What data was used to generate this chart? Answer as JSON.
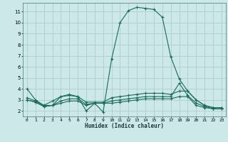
{
  "xlabel": "Humidex (Indice chaleur)",
  "bg_color": "#cce8e8",
  "grid_color": "#b0cccc",
  "line_color": "#1a6b5a",
  "xlim": [
    -0.5,
    23.5
  ],
  "ylim": [
    1.5,
    11.8
  ],
  "yticks": [
    2,
    3,
    4,
    5,
    6,
    7,
    8,
    9,
    10,
    11
  ],
  "xticks": [
    0,
    1,
    2,
    3,
    4,
    5,
    6,
    7,
    8,
    9,
    10,
    11,
    12,
    13,
    14,
    15,
    16,
    17,
    18,
    19,
    20,
    21,
    22,
    23
  ],
  "line1_x": [
    0,
    1,
    2,
    3,
    4,
    5,
    6,
    7,
    8,
    9,
    10,
    11,
    12,
    13,
    14,
    15,
    16,
    17,
    18,
    19,
    20,
    21,
    22,
    23
  ],
  "line1_y": [
    4.0,
    3.0,
    2.5,
    2.5,
    3.3,
    3.5,
    3.3,
    2.0,
    2.7,
    1.9,
    6.7,
    10.0,
    11.1,
    11.4,
    11.3,
    11.2,
    10.5,
    6.9,
    4.9,
    3.8,
    3.0,
    2.5,
    2.3,
    2.3
  ],
  "line2_x": [
    0,
    1,
    2,
    3,
    4,
    5,
    6,
    7,
    8,
    9,
    10,
    11,
    12,
    13,
    14,
    15,
    16,
    17,
    18,
    19,
    20,
    21,
    22,
    23
  ],
  "line2_y": [
    3.2,
    2.9,
    2.5,
    2.9,
    3.3,
    3.4,
    3.3,
    2.8,
    2.8,
    2.8,
    3.2,
    3.3,
    3.4,
    3.5,
    3.6,
    3.6,
    3.6,
    3.5,
    3.8,
    3.8,
    3.0,
    2.5,
    2.3,
    2.3
  ],
  "line3_x": [
    0,
    1,
    2,
    3,
    4,
    5,
    6,
    7,
    8,
    9,
    10,
    11,
    12,
    13,
    14,
    15,
    16,
    17,
    18,
    19,
    20,
    21,
    22,
    23
  ],
  "line3_y": [
    3.0,
    2.8,
    2.4,
    2.5,
    2.9,
    3.1,
    3.1,
    2.6,
    2.7,
    2.7,
    2.9,
    3.0,
    3.1,
    3.2,
    3.3,
    3.3,
    3.3,
    3.3,
    4.5,
    3.4,
    2.7,
    2.4,
    2.2,
    2.2
  ],
  "line4_x": [
    0,
    1,
    2,
    3,
    4,
    5,
    6,
    7,
    8,
    9,
    10,
    11,
    12,
    13,
    14,
    15,
    16,
    17,
    18,
    19,
    20,
    21,
    22,
    23
  ],
  "line4_y": [
    3.0,
    2.8,
    2.4,
    2.5,
    2.7,
    2.9,
    2.9,
    2.5,
    2.7,
    2.7,
    2.7,
    2.8,
    2.9,
    3.0,
    3.1,
    3.1,
    3.1,
    3.1,
    3.3,
    3.3,
    2.5,
    2.3,
    2.2,
    2.2
  ]
}
